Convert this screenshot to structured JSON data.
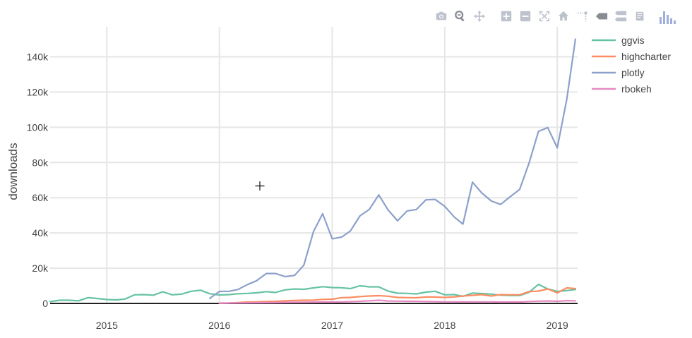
{
  "modebar": {
    "buttons": [
      {
        "name": "camera-icon",
        "title": "Download plot as a png"
      },
      {
        "name": "zoom-icon",
        "title": "Zoom"
      },
      {
        "name": "pan-icon",
        "title": "Pan"
      },
      {
        "name": "zoom-in-icon",
        "title": "Zoom in"
      },
      {
        "name": "zoom-out-icon",
        "title": "Zoom out"
      },
      {
        "name": "autoscale-icon",
        "title": "Autoscale"
      },
      {
        "name": "home-icon",
        "title": "Reset axes"
      },
      {
        "name": "spike-lines-icon",
        "title": "Toggle Spike Lines"
      },
      {
        "name": "hover-closest-icon",
        "title": "Show closest data on hover"
      },
      {
        "name": "hover-compare-icon",
        "title": "Compare data on hover"
      },
      {
        "name": "edit-chart-icon",
        "title": "Edit in Chart Studio"
      }
    ],
    "brand": "plotly-logo-icon"
  },
  "chart_data": {
    "type": "line",
    "title": "",
    "xlabel": "",
    "ylabel": "downloads",
    "xlim": [
      "2014-07-01",
      "2019-03-08"
    ],
    "ylim": [
      0,
      157000
    ],
    "x_ticks": [
      "2015",
      "2016",
      "2017",
      "2018",
      "2019"
    ],
    "y_ticks": [
      "0",
      "20k",
      "40k",
      "60k",
      "80k",
      "100k",
      "120k",
      "140k"
    ],
    "y_tick_values": [
      0,
      20000,
      40000,
      60000,
      80000,
      100000,
      120000,
      140000
    ],
    "grid": true,
    "legend_position": "top-right",
    "series": [
      {
        "name": "ggvis",
        "color": "#66c2a5",
        "points": [
          [
            "2014-07-01",
            1000
          ],
          [
            "2014-08-01",
            1800
          ],
          [
            "2014-09-01",
            1800
          ],
          [
            "2014-10-01",
            1500
          ],
          [
            "2014-11-01",
            3300
          ],
          [
            "2014-12-01",
            2800
          ],
          [
            "2015-01-01",
            2200
          ],
          [
            "2015-02-01",
            2000
          ],
          [
            "2015-03-01",
            2500
          ],
          [
            "2015-04-01",
            4900
          ],
          [
            "2015-05-01",
            5000
          ],
          [
            "2015-06-01",
            4700
          ],
          [
            "2015-07-01",
            6600
          ],
          [
            "2015-08-01",
            4900
          ],
          [
            "2015-09-01",
            5300
          ],
          [
            "2015-10-01",
            6900
          ],
          [
            "2015-11-01",
            7500
          ],
          [
            "2015-12-01",
            5500
          ],
          [
            "2016-01-01",
            4800
          ],
          [
            "2016-02-01",
            5000
          ],
          [
            "2016-03-01",
            5500
          ],
          [
            "2016-04-01",
            5700
          ],
          [
            "2016-05-01",
            6000
          ],
          [
            "2016-06-01",
            6700
          ],
          [
            "2016-07-01",
            6200
          ],
          [
            "2016-08-01",
            7700
          ],
          [
            "2016-09-01",
            8200
          ],
          [
            "2016-10-01",
            8000
          ],
          [
            "2016-11-01",
            8800
          ],
          [
            "2016-12-01",
            9500
          ],
          [
            "2017-01-01",
            9000
          ],
          [
            "2017-02-01",
            8900
          ],
          [
            "2017-03-01",
            8400
          ],
          [
            "2017-04-01",
            10000
          ],
          [
            "2017-05-01",
            9400
          ],
          [
            "2017-06-01",
            9400
          ],
          [
            "2017-07-01",
            7000
          ],
          [
            "2017-08-01",
            5800
          ],
          [
            "2017-09-01",
            5700
          ],
          [
            "2017-10-01",
            5400
          ],
          [
            "2017-11-01",
            6400
          ],
          [
            "2017-12-01",
            6900
          ],
          [
            "2018-01-01",
            4900
          ],
          [
            "2018-02-01",
            5000
          ],
          [
            "2018-03-01",
            4000
          ],
          [
            "2018-04-01",
            5900
          ],
          [
            "2018-05-01",
            5600
          ],
          [
            "2018-06-01",
            5300
          ],
          [
            "2018-07-01",
            4700
          ],
          [
            "2018-08-01",
            4500
          ],
          [
            "2018-09-01",
            4500
          ],
          [
            "2018-10-01",
            6300
          ],
          [
            "2018-11-01",
            10800
          ],
          [
            "2018-12-01",
            8200
          ],
          [
            "2019-01-01",
            6800
          ],
          [
            "2019-02-01",
            7300
          ],
          [
            "2019-03-01",
            7900
          ]
        ]
      },
      {
        "name": "highcharter",
        "color": "#fc8d62",
        "points": [
          [
            "2016-01-01",
            100
          ],
          [
            "2016-02-01",
            200
          ],
          [
            "2016-03-01",
            500
          ],
          [
            "2016-04-01",
            800
          ],
          [
            "2016-05-01",
            900
          ],
          [
            "2016-06-01",
            1100
          ],
          [
            "2016-07-01",
            1200
          ],
          [
            "2016-08-01",
            1500
          ],
          [
            "2016-09-01",
            1700
          ],
          [
            "2016-10-01",
            1800
          ],
          [
            "2016-11-01",
            1900
          ],
          [
            "2016-12-01",
            2300
          ],
          [
            "2017-01-01",
            2400
          ],
          [
            "2017-02-01",
            3300
          ],
          [
            "2017-03-01",
            3400
          ],
          [
            "2017-04-01",
            3900
          ],
          [
            "2017-05-01",
            4200
          ],
          [
            "2017-06-01",
            4400
          ],
          [
            "2017-07-01",
            4100
          ],
          [
            "2017-08-01",
            3400
          ],
          [
            "2017-09-01",
            3300
          ],
          [
            "2017-10-01",
            3200
          ],
          [
            "2017-11-01",
            3700
          ],
          [
            "2017-12-01",
            3600
          ],
          [
            "2018-01-01",
            3400
          ],
          [
            "2018-02-01",
            3700
          ],
          [
            "2018-03-01",
            4200
          ],
          [
            "2018-04-01",
            4600
          ],
          [
            "2018-05-01",
            5000
          ],
          [
            "2018-06-01",
            4200
          ],
          [
            "2018-07-01",
            5000
          ],
          [
            "2018-08-01",
            4900
          ],
          [
            "2018-09-01",
            4900
          ],
          [
            "2018-10-01",
            6700
          ],
          [
            "2018-11-01",
            7000
          ],
          [
            "2018-12-01",
            8200
          ],
          [
            "2019-01-01",
            6000
          ],
          [
            "2019-02-01",
            8800
          ],
          [
            "2019-03-01",
            8400
          ]
        ]
      },
      {
        "name": "plotly",
        "color": "#8da0cb",
        "points": [
          [
            "2015-12-01",
            2900
          ],
          [
            "2016-01-01",
            6800
          ],
          [
            "2016-02-01",
            6900
          ],
          [
            "2016-03-01",
            7900
          ],
          [
            "2016-04-01",
            10700
          ],
          [
            "2016-05-01",
            12900
          ],
          [
            "2016-06-01",
            17000
          ],
          [
            "2016-07-01",
            17000
          ],
          [
            "2016-08-01",
            15200
          ],
          [
            "2016-09-01",
            15900
          ],
          [
            "2016-10-01",
            21700
          ],
          [
            "2016-11-01",
            40600
          ],
          [
            "2016-12-01",
            50900
          ],
          [
            "2017-01-01",
            36700
          ],
          [
            "2017-02-01",
            37700
          ],
          [
            "2017-03-01",
            41100
          ],
          [
            "2017-04-01",
            49700
          ],
          [
            "2017-05-01",
            53300
          ],
          [
            "2017-06-01",
            61600
          ],
          [
            "2017-07-01",
            53100
          ],
          [
            "2017-08-01",
            46900
          ],
          [
            "2017-09-01",
            52500
          ],
          [
            "2017-10-01",
            53300
          ],
          [
            "2017-11-01",
            58800
          ],
          [
            "2017-12-01",
            59000
          ],
          [
            "2018-01-01",
            55100
          ],
          [
            "2018-02-01",
            49000
          ],
          [
            "2018-03-01",
            45000
          ],
          [
            "2018-04-01",
            68800
          ],
          [
            "2018-05-01",
            62700
          ],
          [
            "2018-06-01",
            58100
          ],
          [
            "2018-07-01",
            56200
          ],
          [
            "2018-08-01",
            60500
          ],
          [
            "2018-09-01",
            64700
          ],
          [
            "2018-10-01",
            79400
          ],
          [
            "2018-11-01",
            97700
          ],
          [
            "2018-12-01",
            99800
          ],
          [
            "2019-01-01",
            88300
          ],
          [
            "2019-02-01",
            116000
          ],
          [
            "2019-03-01",
            150000
          ]
        ]
      },
      {
        "name": "rbokeh",
        "color": "#e78ac3",
        "points": [
          [
            "2016-01-01",
            200
          ],
          [
            "2016-02-01",
            250
          ],
          [
            "2016-03-01",
            300
          ],
          [
            "2016-04-01",
            350
          ],
          [
            "2016-05-01",
            400
          ],
          [
            "2016-06-01",
            450
          ],
          [
            "2016-07-01",
            500
          ],
          [
            "2016-08-01",
            600
          ],
          [
            "2016-09-01",
            650
          ],
          [
            "2016-10-01",
            700
          ],
          [
            "2016-11-01",
            750
          ],
          [
            "2016-12-01",
            800
          ],
          [
            "2017-01-01",
            800
          ],
          [
            "2017-02-01",
            900
          ],
          [
            "2017-03-01",
            1000
          ],
          [
            "2017-04-01",
            1200
          ],
          [
            "2017-05-01",
            1500
          ],
          [
            "2017-06-01",
            1800
          ],
          [
            "2017-07-01",
            1400
          ],
          [
            "2017-08-01",
            1300
          ],
          [
            "2017-09-01",
            1200
          ],
          [
            "2017-10-01",
            1200
          ],
          [
            "2017-11-01",
            1100
          ],
          [
            "2017-12-01",
            1000
          ],
          [
            "2018-01-01",
            900
          ],
          [
            "2018-02-01",
            900
          ],
          [
            "2018-03-01",
            900
          ],
          [
            "2018-04-01",
            900
          ],
          [
            "2018-05-01",
            900
          ],
          [
            "2018-06-01",
            900
          ],
          [
            "2018-07-01",
            800
          ],
          [
            "2018-08-01",
            800
          ],
          [
            "2018-09-01",
            800
          ],
          [
            "2018-10-01",
            1100
          ],
          [
            "2018-11-01",
            1300
          ],
          [
            "2018-12-01",
            1400
          ],
          [
            "2019-01-01",
            1200
          ],
          [
            "2019-02-01",
            1600
          ],
          [
            "2019-03-01",
            1500
          ]
        ]
      }
    ]
  }
}
